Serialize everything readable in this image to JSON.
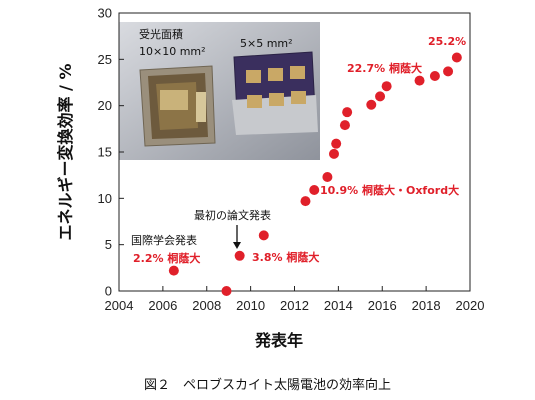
{
  "chart_data": {
    "type": "scatter",
    "xlabel": "発表年",
    "ylabel": "エネルギー変換効率 / %",
    "xlim": [
      2004,
      2020
    ],
    "ylim": [
      0,
      30
    ],
    "x_ticks": [
      2004,
      2006,
      2008,
      2010,
      2012,
      2014,
      2016,
      2018,
      2020
    ],
    "y_ticks": [
      0,
      5,
      10,
      15,
      20,
      25,
      30
    ],
    "series": [
      {
        "color": "#e0202a",
        "points": [
          {
            "x": 2006.5,
            "y": 2.2
          },
          {
            "x": 2008.9,
            "y": 0.0
          },
          {
            "x": 2009.5,
            "y": 3.8
          },
          {
            "x": 2010.6,
            "y": 6.0
          },
          {
            "x": 2012.5,
            "y": 9.7
          },
          {
            "x": 2012.9,
            "y": 10.9
          },
          {
            "x": 2013.5,
            "y": 12.3
          },
          {
            "x": 2013.8,
            "y": 14.8
          },
          {
            "x": 2013.9,
            "y": 15.9
          },
          {
            "x": 2014.3,
            "y": 17.9
          },
          {
            "x": 2014.4,
            "y": 19.3
          },
          {
            "x": 2015.5,
            "y": 20.1
          },
          {
            "x": 2015.9,
            "y": 21.0
          },
          {
            "x": 2016.2,
            "y": 22.1
          },
          {
            "x": 2017.7,
            "y": 22.7
          },
          {
            "x": 2018.4,
            "y": 23.2
          },
          {
            "x": 2019.0,
            "y": 23.7
          },
          {
            "x": 2019.4,
            "y": 25.2
          }
        ]
      }
    ],
    "annotations": {
      "a1": "2.2% 桐蔭大",
      "a2": "3.8% 桐蔭大",
      "a3": "10.9% 桐蔭大・Oxford大",
      "a4": "22.7% 桐蔭大",
      "a5": "25.2%",
      "k1": "国際学会発表",
      "k2": "最初の論文発表"
    },
    "inset": {
      "left_label_line1": "受光面積",
      "left_label_line2": "10×10 mm²",
      "right_label": "5×5 mm²"
    }
  },
  "caption": "図２　ペロブスカイト太陽電池の効率向上"
}
